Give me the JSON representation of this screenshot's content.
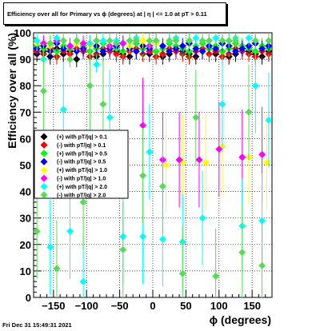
{
  "chart_data": {
    "type": "scatter",
    "title": "Efficiency over all for Primary vs ϕ (degrees) at |  η | <= 1.0 at pT > 0.11",
    "xlabel": "ϕ (degrees)",
    "ylabel": "Efficiency over all (%)",
    "xlim": [
      -180,
      180
    ],
    "ylim": [
      0,
      100
    ],
    "x_ticks": [
      -150,
      -100,
      -50,
      0,
      50,
      100,
      150
    ],
    "y_ticks": [
      0,
      10,
      20,
      30,
      40,
      50,
      60,
      70,
      80,
      90,
      100
    ],
    "grid": true,
    "legend_position": "middle-left",
    "series": [
      {
        "name": "(+) with pT/|q| > 0.1",
        "color": "#000000",
        "x": [
          -175,
          -165,
          -155,
          -145,
          -135,
          -125,
          -115,
          -105,
          -95,
          -85,
          -75,
          -65,
          -55,
          -45,
          -35,
          -25,
          -15,
          -5,
          5,
          15,
          25,
          35,
          45,
          55,
          65,
          75,
          85,
          95,
          105,
          115,
          125,
          135,
          145,
          155,
          165,
          175
        ],
        "y": [
          92,
          93,
          91,
          94,
          92,
          93,
          90,
          94,
          93,
          91,
          92,
          94,
          93,
          92,
          91,
          93,
          94,
          92,
          93,
          91,
          92,
          94,
          93,
          92,
          91,
          93,
          94,
          92,
          93,
          91,
          92,
          94,
          93,
          92,
          91,
          93
        ]
      },
      {
        "name": "(-) with pT/|q| > 0.1",
        "color": "#ff0000",
        "x": [
          -175,
          -165,
          -155,
          -145,
          -135,
          -125,
          -115,
          -105,
          -95,
          -85,
          -75,
          -65,
          -55,
          -45,
          -35,
          -25,
          -15,
          -5,
          5,
          15,
          25,
          35,
          45,
          55,
          65,
          75,
          85,
          95,
          105,
          115,
          125,
          135,
          145,
          155,
          165,
          175
        ],
        "y": [
          93,
          92,
          94,
          91,
          93,
          92,
          94,
          93,
          91,
          92,
          94,
          93,
          92,
          91,
          93,
          94,
          92,
          93,
          91,
          92,
          94,
          93,
          92,
          91,
          93,
          94,
          92,
          93,
          91,
          92,
          94,
          93,
          92,
          91,
          93,
          92
        ]
      },
      {
        "name": "(+) with pT/|q| > 0.5",
        "color": "#00ff00",
        "x": [
          -175,
          -165,
          -155,
          -145,
          -135,
          -125,
          -115,
          -105,
          -95,
          -85,
          -75,
          -65,
          -55,
          -45,
          -35,
          -25,
          -15,
          -5,
          5,
          15,
          25,
          35,
          45,
          55,
          65,
          75,
          85,
          95,
          105,
          115,
          125,
          135,
          145,
          155,
          165,
          175
        ],
        "y": [
          95,
          94,
          96,
          93,
          95,
          94,
          96,
          95,
          93,
          94,
          96,
          95,
          94,
          93,
          95,
          96,
          94,
          95,
          93,
          94,
          96,
          95,
          94,
          93,
          95,
          96,
          94,
          95,
          93,
          94,
          96,
          95,
          94,
          93,
          95,
          94
        ]
      },
      {
        "name": "(-) with pT/|q| > 0.5",
        "color": "#0000ff",
        "x": [
          -175,
          -165,
          -155,
          -145,
          -135,
          -125,
          -115,
          -105,
          -95,
          -85,
          -75,
          -65,
          -55,
          -45,
          -35,
          -25,
          -15,
          -5,
          5,
          15,
          25,
          35,
          45,
          55,
          65,
          75,
          85,
          95,
          105,
          115,
          125,
          135,
          145,
          155,
          165,
          175
        ],
        "y": [
          94,
          95,
          93,
          96,
          94,
          95,
          93,
          94,
          96,
          95,
          93,
          94,
          95,
          96,
          94,
          93,
          95,
          94,
          96,
          95,
          93,
          94,
          95,
          96,
          94,
          93,
          95,
          94,
          96,
          95,
          93,
          94,
          95,
          96,
          94,
          95
        ]
      },
      {
        "name": "(+) with pT/|q| > 1.0",
        "color": "#ffff00",
        "x": [
          -175,
          -155,
          -135,
          -115,
          -95,
          -75,
          -55,
          -35,
          -15,
          5,
          20,
          45,
          80,
          105,
          145,
          172
        ],
        "y": [
          96,
          95,
          97,
          96,
          95,
          97,
          96,
          95,
          97,
          96,
          50,
          51,
          51,
          57,
          53,
          51
        ]
      },
      {
        "name": "(-) with pT/|q| > 1.0",
        "color": "#ff00ff",
        "x": [
          -165,
          -145,
          -125,
          -105,
          -85,
          -65,
          -45,
          -25,
          -5,
          -15,
          15,
          40,
          70,
          100,
          135,
          165
        ],
        "y": [
          96,
          97,
          95,
          96,
          97,
          95,
          96,
          97,
          95,
          65,
          52,
          52,
          52,
          56,
          53,
          54
        ]
      },
      {
        "name": "(+) with pT/|q| > 2.0",
        "color": "#00ffff",
        "x": [
          -175,
          -165,
          -155,
          -145,
          -135,
          -125,
          -115,
          -105,
          -95,
          -85,
          -75,
          -65,
          -55,
          -45,
          -35,
          -25,
          -15,
          -5,
          5,
          15,
          25,
          35,
          45,
          55,
          65,
          75,
          85,
          95,
          105,
          115,
          125,
          135,
          145,
          155,
          165,
          175
        ],
        "y": [
          97,
          90,
          19,
          98,
          71,
          25,
          97,
          6,
          96,
          88,
          97,
          68,
          97,
          23,
          97,
          98,
          23,
          55,
          97,
          22,
          97,
          98,
          21,
          97,
          98,
          30,
          97,
          98,
          73,
          97,
          98,
          27,
          98,
          80,
          29,
          67
        ]
      },
      {
        "name": "(-) with pT/|q| > 2.0",
        "color": "#55dd55",
        "x": [
          -175,
          -165,
          -155,
          -145,
          -135,
          -125,
          -115,
          -105,
          -95,
          -85,
          -75,
          -65,
          -55,
          -45,
          -35,
          -25,
          -15,
          -5,
          5,
          15,
          25,
          35,
          45,
          55,
          65,
          75,
          85,
          95,
          105,
          115,
          125,
          135,
          145,
          155,
          165,
          175
        ],
        "y": [
          25,
          78,
          96,
          11,
          97,
          90,
          97,
          36,
          80,
          97,
          73,
          97,
          96,
          18,
          97,
          97,
          46,
          97,
          97,
          42,
          97,
          97,
          9,
          97,
          68,
          97,
          97,
          8,
          97,
          97,
          97,
          17,
          70,
          97,
          12,
          97
        ]
      }
    ]
  },
  "footer": {
    "timestamp": "Fri Dec 31 15:49:31 2021"
  }
}
